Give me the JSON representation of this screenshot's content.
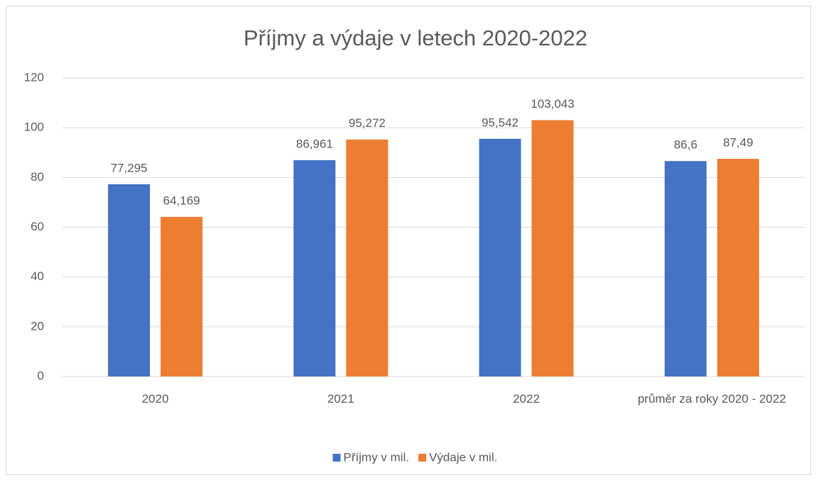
{
  "chart_data": {
    "type": "bar",
    "title": "Příjmy a výdaje v letech 2020-2022",
    "categories": [
      "2020",
      "2021",
      "2022",
      "průměr za roky 2020 - 2022"
    ],
    "series": [
      {
        "name": "Příjmy v mil.",
        "color": "#4472c4",
        "values": [
          77.295,
          86.961,
          95.542,
          86.6
        ],
        "value_labels": [
          "77,295",
          "86,961",
          "95,542",
          "86,6"
        ]
      },
      {
        "name": "Výdaje v mil.",
        "color": "#ed7d31",
        "values": [
          64.169,
          95.272,
          103.043,
          87.49
        ],
        "value_labels": [
          "64,169",
          "95,272",
          "103,043",
          "87,49"
        ]
      }
    ],
    "ylim": [
      0,
      120
    ],
    "yticks": [
      0,
      20,
      40,
      60,
      80,
      100,
      120
    ],
    "grid": true,
    "legend": "bottom"
  }
}
